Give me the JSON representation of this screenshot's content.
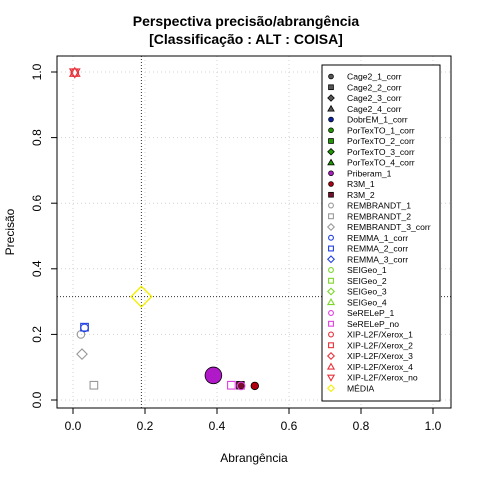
{
  "chart_data": {
    "type": "scatter",
    "title": "Perspectiva precisão/abrangência",
    "subtitle": "[Classificação : ALT : COISA]",
    "xlabel": "Abrangência",
    "ylabel": "Precisão",
    "xlim": [
      0,
      1
    ],
    "ylim": [
      0,
      1
    ],
    "xticks": [
      "0.0",
      "0.2",
      "0.4",
      "0.6",
      "0.8",
      "1.0"
    ],
    "yticks": [
      "0.0",
      "0.2",
      "0.4",
      "0.6",
      "0.8",
      "1.0"
    ],
    "grid": true,
    "reference_lines": {
      "x": 0.19,
      "y": 0.315
    },
    "legend_position": "right",
    "series": [
      {
        "name": "Cage2_1_corr",
        "shape": "circle",
        "filled": true,
        "color": "#555555",
        "points": []
      },
      {
        "name": "Cage2_2_corr",
        "shape": "square",
        "filled": true,
        "color": "#555555",
        "points": []
      },
      {
        "name": "Cage2_3_corr",
        "shape": "diamond",
        "filled": true,
        "color": "#555555",
        "points": []
      },
      {
        "name": "Cage2_4_corr",
        "shape": "triangle",
        "filled": true,
        "color": "#555555",
        "points": []
      },
      {
        "name": "DobrEM_1_corr",
        "shape": "circle",
        "filled": true,
        "color": "#0a1fa8",
        "points": []
      },
      {
        "name": "PorTexTO_1_corr",
        "shape": "circle",
        "filled": true,
        "color": "#1e9a00",
        "points": []
      },
      {
        "name": "PorTexTO_2_corr",
        "shape": "square",
        "filled": true,
        "color": "#1e9a00",
        "points": []
      },
      {
        "name": "PorTexTO_3_corr",
        "shape": "diamond",
        "filled": true,
        "color": "#1e9a00",
        "points": []
      },
      {
        "name": "PorTexTO_4_corr",
        "shape": "triangle",
        "filled": true,
        "color": "#1e9a00",
        "points": []
      },
      {
        "name": "Priberam_1",
        "shape": "circle",
        "filled": true,
        "color": "#b019c8",
        "points": [
          {
            "x": 0.39,
            "y": 0.075,
            "size": 2.2
          }
        ]
      },
      {
        "name": "R3M_1",
        "shape": "circle",
        "filled": true,
        "color": "#b00010",
        "points": [
          {
            "x": 0.505,
            "y": 0.043,
            "size": 1
          }
        ]
      },
      {
        "name": "R3M_2",
        "shape": "square",
        "filled": true,
        "color": "#7a0c2c",
        "points": [
          {
            "x": 0.465,
            "y": 0.045,
            "size": 1
          }
        ]
      },
      {
        "name": "REMBRANDT_1",
        "shape": "circle",
        "filled": false,
        "color": "#999999",
        "points": [
          {
            "x": 0.022,
            "y": 0.2,
            "size": 1
          }
        ]
      },
      {
        "name": "REMBRANDT_2",
        "shape": "square",
        "filled": false,
        "color": "#999999",
        "points": [
          {
            "x": 0.058,
            "y": 0.045,
            "size": 1
          }
        ]
      },
      {
        "name": "REMBRANDT_3_corr",
        "shape": "diamond",
        "filled": false,
        "color": "#999999",
        "points": [
          {
            "x": 0.025,
            "y": 0.14,
            "size": 1
          }
        ]
      },
      {
        "name": "REMMA_1_corr",
        "shape": "circle",
        "filled": false,
        "color": "#2040e0",
        "points": [
          {
            "x": 0.032,
            "y": 0.22,
            "size": 1
          }
        ]
      },
      {
        "name": "REMMA_2_corr",
        "shape": "square",
        "filled": false,
        "color": "#2040e0",
        "points": [
          {
            "x": 0.032,
            "y": 0.222,
            "size": 1
          }
        ]
      },
      {
        "name": "REMMA_3_corr",
        "shape": "diamond",
        "filled": false,
        "color": "#2040e0",
        "points": []
      },
      {
        "name": "SEIGeo_1",
        "shape": "circle",
        "filled": false,
        "color": "#7cd62a",
        "points": []
      },
      {
        "name": "SEIGeo_2",
        "shape": "square",
        "filled": false,
        "color": "#7cd62a",
        "points": []
      },
      {
        "name": "SEIGeo_3",
        "shape": "diamond",
        "filled": false,
        "color": "#7cd62a",
        "points": []
      },
      {
        "name": "SEIGeo_4",
        "shape": "triangle",
        "filled": false,
        "color": "#7cd62a",
        "points": []
      },
      {
        "name": "SeRELeP_1",
        "shape": "circle",
        "filled": false,
        "color": "#e040e0",
        "points": [
          {
            "x": 0.467,
            "y": 0.043,
            "size": 1
          }
        ]
      },
      {
        "name": "SeRELeP_no",
        "shape": "square",
        "filled": false,
        "color": "#e040e0",
        "points": [
          {
            "x": 0.44,
            "y": 0.045,
            "size": 1
          }
        ]
      },
      {
        "name": "XIP-L2F/Xerox_1",
        "shape": "circle",
        "filled": false,
        "color": "#e8313a",
        "points": [
          {
            "x": 0.005,
            "y": 0.998,
            "size": 1
          }
        ]
      },
      {
        "name": "XIP-L2F/Xerox_2",
        "shape": "square",
        "filled": false,
        "color": "#e8313a",
        "points": []
      },
      {
        "name": "XIP-L2F/Xerox_3",
        "shape": "diamond",
        "filled": false,
        "color": "#e8313a",
        "points": []
      },
      {
        "name": "XIP-L2F/Xerox_4",
        "shape": "triangle",
        "filled": false,
        "color": "#e8313a",
        "points": [
          {
            "x": 0.005,
            "y": 0.998,
            "size": 1
          }
        ]
      },
      {
        "name": "XIP-L2F/Xerox_no",
        "shape": "triangle-down",
        "filled": false,
        "color": "#e8313a",
        "points": [
          {
            "x": 0.005,
            "y": 0.998,
            "size": 1
          }
        ]
      },
      {
        "name": "MÉDIA",
        "shape": "diamond",
        "filled": false,
        "color": "#f4f000",
        "points": [
          {
            "x": 0.19,
            "y": 0.315,
            "size": 2
          }
        ]
      }
    ]
  }
}
